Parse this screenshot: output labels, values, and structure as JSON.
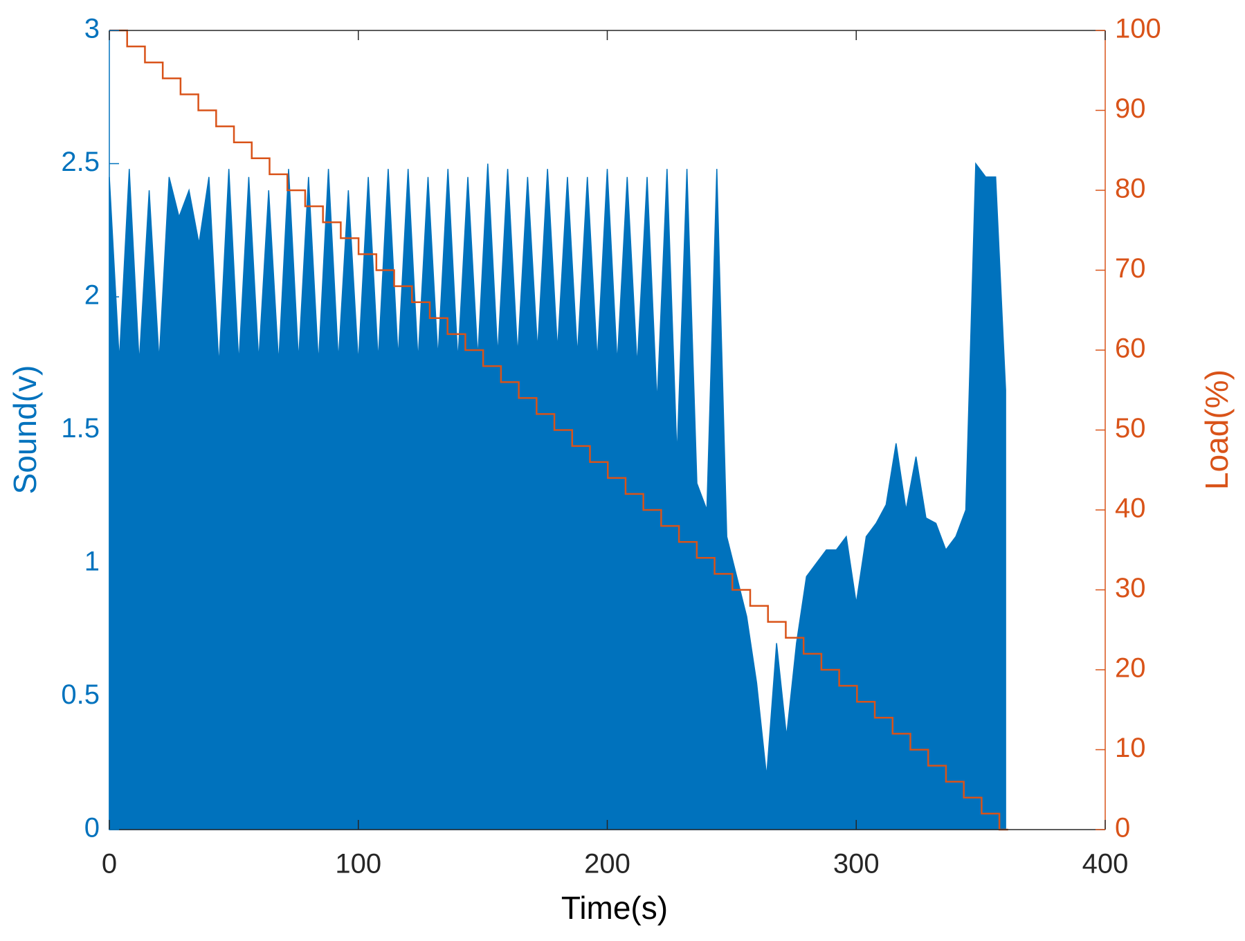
{
  "chart_data": {
    "type": "line",
    "xlabel": "Time(s)",
    "ylabel": "Sound(v)",
    "y2label": "Load(%)",
    "xlim": [
      0,
      400
    ],
    "xticks": [
      0,
      100,
      200,
      300,
      400
    ],
    "ylim": [
      0,
      3
    ],
    "yticks": [
      0,
      0.5,
      1,
      1.5,
      2,
      2.5,
      3
    ],
    "y2lim": [
      0,
      100
    ],
    "y2ticks": [
      0,
      10,
      20,
      30,
      40,
      50,
      60,
      70,
      80,
      90,
      100
    ],
    "grid": false,
    "series": [
      {
        "color": "#0072BD",
        "fill": true,
        "x": [
          0,
          4,
          8,
          12,
          16,
          20,
          24,
          28,
          32,
          36,
          40,
          44,
          48,
          52,
          56,
          60,
          64,
          68,
          72,
          76,
          80,
          84,
          88,
          92,
          96,
          100,
          104,
          108,
          112,
          116,
          120,
          124,
          128,
          132,
          136,
          140,
          144,
          148,
          152,
          156,
          160,
          164,
          168,
          172,
          176,
          180,
          184,
          188,
          192,
          196,
          200,
          204,
          208,
          212,
          216,
          220,
          224,
          228,
          232,
          236,
          240,
          244,
          248,
          252,
          256,
          260,
          264,
          268,
          272,
          276,
          280,
          284,
          288,
          292,
          296,
          300,
          304,
          308,
          312,
          316,
          320,
          324,
          328,
          332,
          336,
          340,
          344,
          348,
          352,
          356,
          360
        ],
        "values": [
          2.45,
          1.76,
          2.48,
          1.75,
          2.4,
          1.76,
          2.45,
          2.3,
          2.4,
          2.2,
          2.45,
          1.74,
          2.48,
          1.75,
          2.45,
          1.76,
          2.4,
          1.75,
          2.48,
          1.76,
          2.45,
          1.75,
          2.48,
          1.76,
          2.4,
          1.75,
          2.45,
          1.76,
          2.48,
          1.77,
          2.48,
          1.76,
          2.45,
          1.77,
          2.48,
          1.76,
          2.45,
          1.77,
          2.5,
          1.78,
          2.48,
          1.78,
          2.45,
          1.8,
          2.48,
          1.8,
          2.45,
          1.78,
          2.45,
          1.76,
          2.48,
          1.75,
          2.45,
          1.74,
          2.45,
          1.6,
          2.48,
          1.4,
          2.48,
          1.3,
          1.2,
          2.48,
          1.1,
          0.95,
          0.8,
          0.55,
          0.2,
          0.7,
          0.35,
          0.7,
          0.95,
          1.0,
          1.05,
          1.05,
          1.1,
          0.85,
          1.1,
          1.15,
          1.22,
          1.45,
          1.2,
          1.4,
          1.17,
          1.15,
          1.05,
          1.1,
          1.2,
          2.5,
          2.45,
          2.45,
          1.65
        ]
      },
      {
        "color": "#D95319",
        "axis": "y2",
        "step": true,
        "x": [
          0,
          7.15,
          14.3,
          21.45,
          28.6,
          35.75,
          42.9,
          50.05,
          57.2,
          64.35,
          71.5,
          78.65,
          85.8,
          92.95,
          100.1,
          107.25,
          114.4,
          121.55,
          128.7,
          135.85,
          143,
          150.15,
          157.3,
          164.45,
          171.6,
          178.75,
          185.9,
          193.05,
          200.2,
          207.35,
          214.5,
          221.65,
          228.8,
          235.95,
          243.1,
          250.25,
          257.4,
          264.55,
          271.7,
          278.85,
          286,
          293.15,
          300.3,
          307.45,
          314.6,
          321.75,
          328.9,
          336.05,
          343.2,
          350.35,
          357.5,
          361
        ],
        "values": [
          100,
          98,
          96,
          94,
          92,
          90,
          88,
          86,
          84,
          82,
          80,
          78,
          76,
          74,
          72,
          70,
          68,
          66,
          64,
          62,
          60,
          58,
          56,
          54,
          52,
          50,
          48,
          46,
          44,
          42,
          40,
          38,
          36,
          34,
          32,
          30,
          28,
          26,
          24,
          22,
          20,
          18,
          16,
          14,
          12,
          10,
          8,
          6,
          4,
          2,
          0,
          0
        ]
      }
    ]
  }
}
